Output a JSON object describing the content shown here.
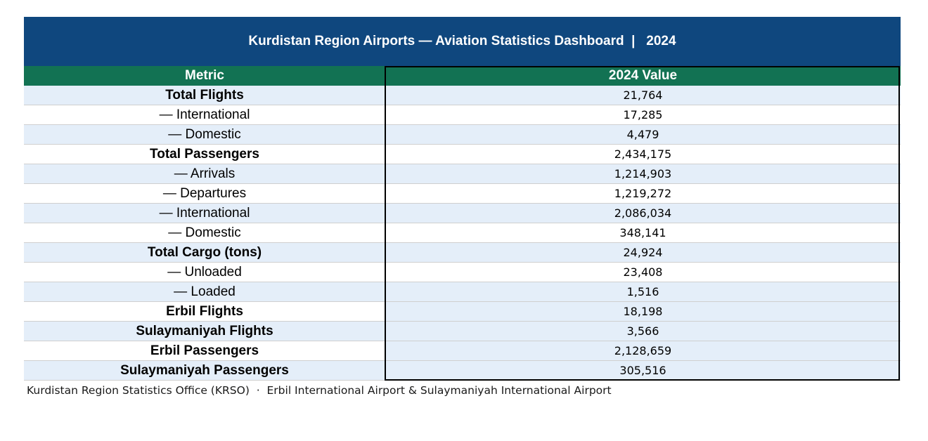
{
  "title": "Kurdistan Region Airports — Aviation Statistics Dashboard  |   2024",
  "table": {
    "headers": {
      "metric": "Metric",
      "value": "2024 Value"
    },
    "rows": [
      {
        "metric": "Total Flights",
        "value": "21,764",
        "bold": true,
        "left_bg": "blue",
        "right_bg": "blue"
      },
      {
        "metric": "— International",
        "value": "17,285",
        "bold": false,
        "left_bg": "white",
        "right_bg": "white"
      },
      {
        "metric": "— Domestic",
        "value": "4,479",
        "bold": false,
        "left_bg": "blue",
        "right_bg": "blue"
      },
      {
        "metric": "Total Passengers",
        "value": "2,434,175",
        "bold": true,
        "left_bg": "white",
        "right_bg": "white"
      },
      {
        "metric": "— Arrivals",
        "value": "1,214,903",
        "bold": false,
        "left_bg": "blue",
        "right_bg": "blue"
      },
      {
        "metric": "— Departures",
        "value": "1,219,272",
        "bold": false,
        "left_bg": "white",
        "right_bg": "white"
      },
      {
        "metric": "— International",
        "value": "2,086,034",
        "bold": false,
        "left_bg": "blue",
        "right_bg": "blue"
      },
      {
        "metric": "— Domestic",
        "value": "348,141",
        "bold": false,
        "left_bg": "white",
        "right_bg": "white"
      },
      {
        "metric": "Total Cargo (tons)",
        "value": "24,924",
        "bold": true,
        "left_bg": "blue",
        "right_bg": "blue"
      },
      {
        "metric": "— Unloaded",
        "value": "23,408",
        "bold": false,
        "left_bg": "white",
        "right_bg": "white"
      },
      {
        "metric": "— Loaded",
        "value": "1,516",
        "bold": false,
        "left_bg": "blue",
        "right_bg": "blue"
      },
      {
        "metric": "Erbil Flights",
        "value": "18,198",
        "bold": true,
        "left_bg": "white",
        "right_bg": "blue"
      },
      {
        "metric": "Sulaymaniyah Flights",
        "value": "3,566",
        "bold": true,
        "left_bg": "blue",
        "right_bg": "blue"
      },
      {
        "metric": "Erbil Passengers",
        "value": "2,128,659",
        "bold": true,
        "left_bg": "white",
        "right_bg": "blue"
      },
      {
        "metric": "Sulaymaniyah Passengers",
        "value": "305,516",
        "bold": true,
        "left_bg": "blue",
        "right_bg": "blue"
      }
    ]
  },
  "footer": "Kurdistan Region Statistics Office (KRSO)  ·  Erbil International Airport & Sulaymaniyah International Airport",
  "colors": {
    "title_bg": "#0f477e",
    "header_bg": "#127253",
    "band_blue": "#e4eef9",
    "band_white": "#ffffff"
  }
}
